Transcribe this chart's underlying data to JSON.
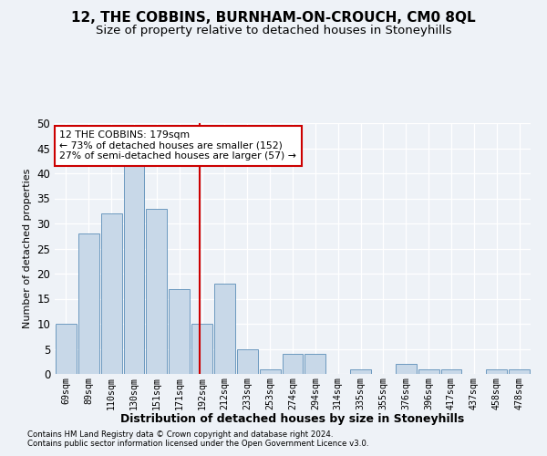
{
  "title": "12, THE COBBINS, BURNHAM-ON-CROUCH, CM0 8QL",
  "subtitle": "Size of property relative to detached houses in Stoneyhills",
  "xlabel": "Distribution of detached houses by size in Stoneyhills",
  "ylabel": "Number of detached properties",
  "bar_color": "#c8d8e8",
  "bar_edge_color": "#5b8db8",
  "categories": [
    "69sqm",
    "89sqm",
    "110sqm",
    "130sqm",
    "151sqm",
    "171sqm",
    "192sqm",
    "212sqm",
    "233sqm",
    "253sqm",
    "274sqm",
    "294sqm",
    "314sqm",
    "335sqm",
    "355sqm",
    "376sqm",
    "396sqm",
    "417sqm",
    "437sqm",
    "458sqm",
    "478sqm"
  ],
  "values": [
    10,
    28,
    32,
    42,
    33,
    17,
    10,
    18,
    5,
    1,
    4,
    4,
    0,
    1,
    0,
    2,
    1,
    1,
    0,
    1,
    1
  ],
  "vline_color": "#cc0000",
  "annotation_text": "12 THE COBBINS: 179sqm\n← 73% of detached houses are smaller (152)\n27% of semi-detached houses are larger (57) →",
  "annotation_box_color": "#ffffff",
  "annotation_box_edge": "#cc0000",
  "ylim": [
    0,
    50
  ],
  "yticks": [
    0,
    5,
    10,
    15,
    20,
    25,
    30,
    35,
    40,
    45,
    50
  ],
  "footer1": "Contains HM Land Registry data © Crown copyright and database right 2024.",
  "footer2": "Contains public sector information licensed under the Open Government Licence v3.0.",
  "bg_color": "#eef2f7",
  "grid_color": "#ffffff",
  "title_fontsize": 11,
  "subtitle_fontsize": 9.5
}
